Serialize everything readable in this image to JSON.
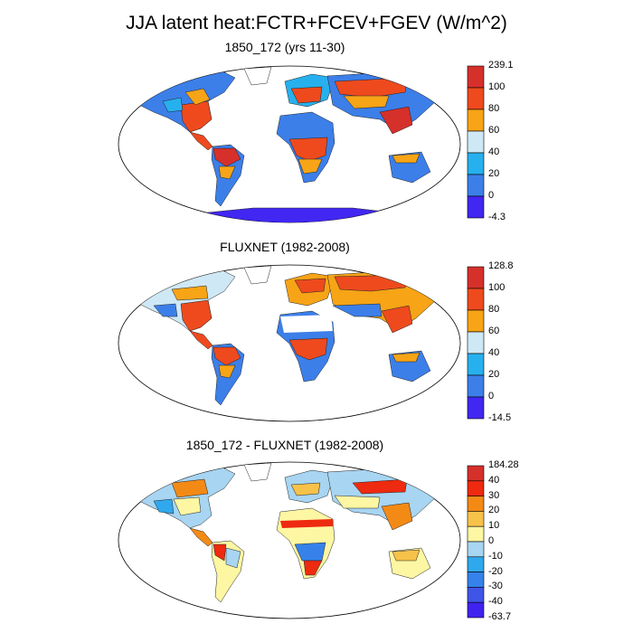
{
  "title": "JJA latent heat:FCTR+FCEV+FGEV (W/m^2)",
  "panels": [
    {
      "title": "1850_172 (yrs 11-30)",
      "colorbar": {
        "labels": [
          "239.1",
          "100",
          "80",
          "60",
          "40",
          "20",
          "0",
          "-4.3"
        ],
        "colors": [
          "#d6302b",
          "#ee4a1e",
          "#f7a416",
          "#cfe8f6",
          "#27b0ee",
          "#3c7fe9",
          "#4127f1"
        ]
      }
    },
    {
      "title": "FLUXNET (1982-2008)",
      "colorbar": {
        "labels": [
          "128.8",
          "100",
          "80",
          "60",
          "40",
          "20",
          "0",
          "-14.5"
        ],
        "colors": [
          "#d6302b",
          "#ee4a1e",
          "#f7a416",
          "#cfe8f6",
          "#27b0ee",
          "#3c7fe9",
          "#4127f1"
        ]
      }
    },
    {
      "title": "1850_172 - FLUXNET (1982-2008)",
      "colorbar": {
        "labels": [
          "184.28",
          "40",
          "30",
          "20",
          "10",
          "0",
          "-10",
          "-20",
          "-30",
          "-40",
          "-63.7"
        ],
        "colors": [
          "#d6302b",
          "#ee2a10",
          "#f38a16",
          "#f7c24a",
          "#fdf6a3",
          "#a7d5f2",
          "#2fa8ee",
          "#3682ea",
          "#3e55e8",
          "#4022f0"
        ]
      }
    }
  ]
}
